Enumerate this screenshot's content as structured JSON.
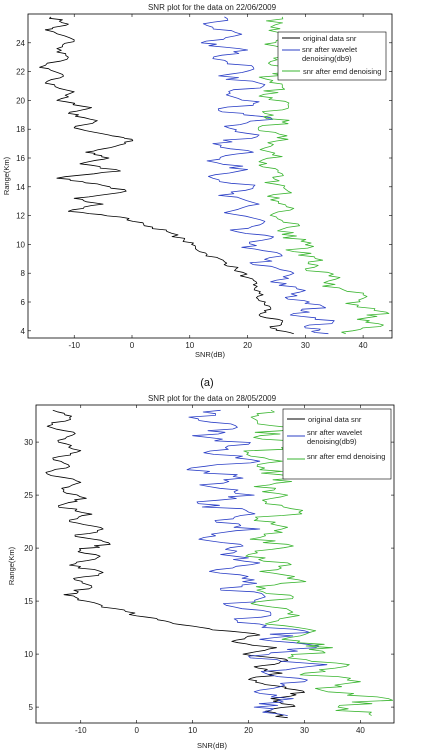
{
  "chart_data": [
    {
      "type": "line",
      "title": "SNR plot for the data on 22/06/2009",
      "xlabel": "SNR(dB)",
      "ylabel": "Range(Km)",
      "xlim": [
        -18,
        45
      ],
      "ylim": [
        3.5,
        26
      ],
      "xticks": [
        "-10",
        "0",
        "10",
        "20",
        "30",
        "40"
      ],
      "yticks": [
        "4",
        "6",
        "8",
        "10",
        "12",
        "14",
        "16",
        "18",
        "20",
        "22",
        "24"
      ],
      "legend_position": "top-right",
      "caption": "(a)",
      "series": [
        {
          "name": "original data snr",
          "color": "#000000",
          "points": [
            [
              -14,
              25.8
            ],
            [
              -11,
              25.3
            ],
            [
              -15,
              24.9
            ],
            [
              -10,
              24.2
            ],
            [
              -13,
              23.6
            ],
            [
              -11,
              23.0
            ],
            [
              -16,
              22.3
            ],
            [
              -12,
              21.8
            ],
            [
              -15,
              21.2
            ],
            [
              -10,
              20.6
            ],
            [
              -13,
              20.0
            ],
            [
              -7,
              19.5
            ],
            [
              -11,
              19.1
            ],
            [
              -6,
              18.6
            ],
            [
              -10,
              18.1
            ],
            [
              -4,
              17.6
            ],
            [
              0,
              17.3
            ],
            [
              -3,
              16.8
            ],
            [
              -8,
              16.4
            ],
            [
              -4,
              16.0
            ],
            [
              -9,
              15.6
            ],
            [
              -2,
              15.1
            ],
            [
              -13,
              14.6
            ],
            [
              -6,
              14.2
            ],
            [
              -1,
              13.7
            ],
            [
              -10,
              13.2
            ],
            [
              -5,
              12.8
            ],
            [
              -11,
              12.3
            ],
            [
              -2,
              11.9
            ],
            [
              2,
              11.4
            ],
            [
              6,
              10.9
            ],
            [
              9,
              10.3
            ],
            [
              11,
              9.8
            ],
            [
              13,
              9.3
            ],
            [
              16,
              8.8
            ],
            [
              18,
              8.3
            ],
            [
              20,
              7.7
            ],
            [
              21,
              7.2
            ],
            [
              22,
              6.6
            ],
            [
              22,
              6.1
            ],
            [
              24,
              5.6
            ],
            [
              22,
              5.1
            ],
            [
              26,
              4.6
            ],
            [
              24,
              4.2
            ],
            [
              28,
              3.8
            ]
          ]
        },
        {
          "name": "snr after wavelet denoising(db9)",
          "color": "#2b3fc6",
          "points": [
            [
              16,
              25.8
            ],
            [
              13,
              25.2
            ],
            [
              19,
              24.6
            ],
            [
              12,
              24.0
            ],
            [
              20,
              23.5
            ],
            [
              14,
              22.9
            ],
            [
              21,
              22.3
            ],
            [
              15,
              21.7
            ],
            [
              23,
              21.1
            ],
            [
              17,
              20.5
            ],
            [
              22,
              19.9
            ],
            [
              15,
              19.3
            ],
            [
              24,
              18.8
            ],
            [
              16,
              18.2
            ],
            [
              22,
              17.6
            ],
            [
              14,
              17.0
            ],
            [
              21,
              16.4
            ],
            [
              13,
              15.8
            ],
            [
              20,
              15.2
            ],
            [
              14,
              14.6
            ],
            [
              21,
              14.0
            ],
            [
              15,
              13.4
            ],
            [
              22,
              12.8
            ],
            [
              16,
              12.2
            ],
            [
              23,
              11.6
            ],
            [
              17,
              11.0
            ],
            [
              24,
              10.4
            ],
            [
              19,
              9.8
            ],
            [
              26,
              9.2
            ],
            [
              21,
              8.6
            ],
            [
              28,
              8.0
            ],
            [
              24,
              7.4
            ],
            [
              30,
              6.8
            ],
            [
              27,
              6.2
            ],
            [
              33,
              5.7
            ],
            [
              28,
              5.2
            ],
            [
              35,
              4.7
            ],
            [
              30,
              4.2
            ],
            [
              34,
              3.8
            ]
          ]
        },
        {
          "name": "snr after emd denoising",
          "color": "#3ab530",
          "points": [
            [
              26,
              25.8
            ],
            [
              24,
              25.1
            ],
            [
              27,
              24.5
            ],
            [
              23,
              23.9
            ],
            [
              28,
              23.3
            ],
            [
              24,
              22.7
            ],
            [
              27,
              22.1
            ],
            [
              23,
              21.5
            ],
            [
              26,
              20.9
            ],
            [
              22,
              20.3
            ],
            [
              27,
              19.7
            ],
            [
              23,
              19.1
            ],
            [
              26,
              18.5
            ],
            [
              22,
              17.9
            ],
            [
              27,
              17.3
            ],
            [
              23,
              16.7
            ],
            [
              26,
              16.1
            ],
            [
              22,
              15.5
            ],
            [
              26,
              14.9
            ],
            [
              23,
              14.3
            ],
            [
              27,
              13.7
            ],
            [
              24,
              13.1
            ],
            [
              28,
              12.5
            ],
            [
              25,
              11.9
            ],
            [
              29,
              11.3
            ],
            [
              26,
              10.7
            ],
            [
              31,
              10.1
            ],
            [
              28,
              9.5
            ],
            [
              33,
              8.9
            ],
            [
              30,
              8.3
            ],
            [
              36,
              7.7
            ],
            [
              33,
              7.1
            ],
            [
              40,
              6.5
            ],
            [
              37,
              5.9
            ],
            [
              44,
              5.3
            ],
            [
              39,
              4.8
            ],
            [
              43,
              4.3
            ],
            [
              37,
              3.8
            ]
          ]
        }
      ]
    },
    {
      "type": "line",
      "title": "SNR plot for the data on 28/05/2009",
      "xlabel": "SNR(dB)",
      "ylabel": "Range(Km)",
      "xlim": [
        -18,
        46
      ],
      "ylim": [
        3.5,
        33.5
      ],
      "xticks": [
        "-10",
        "0",
        "10",
        "20",
        "30",
        "40"
      ],
      "yticks": [
        "5",
        "10",
        "15",
        "20",
        "25",
        "30"
      ],
      "legend_position": "top-right",
      "series": [
        {
          "name": "original data snr",
          "color": "#000000",
          "points": [
            [
              -15,
              33.0
            ],
            [
              -12,
              32.3
            ],
            [
              -16,
              31.5
            ],
            [
              -11,
              30.8
            ],
            [
              -14,
              30.0
            ],
            [
              -10,
              29.2
            ],
            [
              -15,
              28.5
            ],
            [
              -12,
              27.7
            ],
            [
              -16,
              27.0
            ],
            [
              -10,
              26.2
            ],
            [
              -13,
              25.5
            ],
            [
              -9,
              24.7
            ],
            [
              -14,
              24.0
            ],
            [
              -8,
              23.2
            ],
            [
              -12,
              22.5
            ],
            [
              -6,
              21.8
            ],
            [
              -11,
              21.1
            ],
            [
              -5,
              20.5
            ],
            [
              -10,
              19.8
            ],
            [
              -7,
              19.1
            ],
            [
              -12,
              18.4
            ],
            [
              -6,
              17.7
            ],
            [
              -11,
              17.0
            ],
            [
              -8,
              16.3
            ],
            [
              -13,
              15.6
            ],
            [
              -9,
              15.0
            ],
            [
              -4,
              14.3
            ],
            [
              0,
              13.6
            ],
            [
              6,
              13.0
            ],
            [
              13,
              12.4
            ],
            [
              22,
              11.8
            ],
            [
              17,
              11.2
            ],
            [
              25,
              10.6
            ],
            [
              19,
              10.0
            ],
            [
              27,
              9.4
            ],
            [
              21,
              8.8
            ],
            [
              26,
              8.2
            ],
            [
              20,
              7.6
            ],
            [
              25,
              7.0
            ],
            [
              30,
              6.4
            ],
            [
              24,
              5.8
            ],
            [
              28,
              5.2
            ],
            [
              23,
              4.6
            ],
            [
              27,
              4.0
            ]
          ]
        },
        {
          "name": "snr after wavelet denoising(db9)",
          "color": "#2b3fc6",
          "points": [
            [
              15,
              33.0
            ],
            [
              11,
              32.2
            ],
            [
              18,
              31.4
            ],
            [
              10,
              30.6
            ],
            [
              20,
              29.8
            ],
            [
              12,
              29.0
            ],
            [
              22,
              28.2
            ],
            [
              9,
              27.4
            ],
            [
              19,
              26.6
            ],
            [
              13,
              25.8
            ],
            [
              21,
              25.0
            ],
            [
              11,
              24.2
            ],
            [
              20,
              23.4
            ],
            [
              14,
              22.6
            ],
            [
              22,
              21.8
            ],
            [
              12,
              21.0
            ],
            [
              19,
              20.2
            ],
            [
              15,
              19.4
            ],
            [
              22,
              18.6
            ],
            [
              13,
              17.8
            ],
            [
              21,
              17.0
            ],
            [
              15,
              16.2
            ],
            [
              23,
              15.4
            ],
            [
              16,
              14.6
            ],
            [
              24,
              13.8
            ],
            [
              18,
              13.0
            ],
            [
              30,
              12.2
            ],
            [
              22,
              11.4
            ],
            [
              32,
              10.6
            ],
            [
              20,
              9.8
            ],
            [
              34,
              9.0
            ],
            [
              23,
              8.2
            ],
            [
              30,
              7.4
            ],
            [
              22,
              6.6
            ],
            [
              28,
              5.8
            ],
            [
              21,
              5.0
            ],
            [
              27,
              4.2
            ]
          ]
        },
        {
          "name": "snr after emd denoising",
          "color": "#3ab530",
          "points": [
            [
              24,
              33.0
            ],
            [
              21,
              32.2
            ],
            [
              27,
              31.4
            ],
            [
              22,
              30.6
            ],
            [
              29,
              29.8
            ],
            [
              20,
              29.0
            ],
            [
              26,
              28.2
            ],
            [
              22,
              27.4
            ],
            [
              28,
              26.6
            ],
            [
              21,
              25.8
            ],
            [
              27,
              25.0
            ],
            [
              23,
              24.2
            ],
            [
              29,
              23.4
            ],
            [
              21,
              22.6
            ],
            [
              26,
              21.8
            ],
            [
              22,
              21.0
            ],
            [
              28,
              20.2
            ],
            [
              20,
              19.4
            ],
            [
              27,
              18.6
            ],
            [
              22,
              17.8
            ],
            [
              29,
              17.0
            ],
            [
              23,
              16.2
            ],
            [
              28,
              15.4
            ],
            [
              22,
              14.6
            ],
            [
              27,
              13.8
            ],
            [
              24,
              13.0
            ],
            [
              32,
              12.2
            ],
            [
              26,
              11.4
            ],
            [
              35,
              10.6
            ],
            [
              28,
              9.8
            ],
            [
              38,
              9.0
            ],
            [
              30,
              8.2
            ],
            [
              40,
              7.4
            ],
            [
              33,
              6.6
            ],
            [
              45,
              5.8
            ],
            [
              36,
              5.0
            ],
            [
              42,
              4.2
            ]
          ]
        }
      ]
    }
  ]
}
